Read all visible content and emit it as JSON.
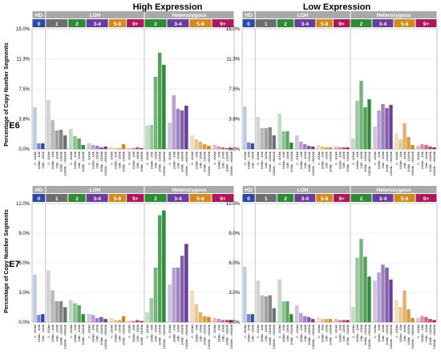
{
  "figure": {
    "column_titles": [
      "High Expression",
      "Low Expression"
    ],
    "row_titles": [
      "E6",
      "E7"
    ],
    "ylabel": "Percentage of Copy Number Segments"
  },
  "legend": {
    "groups": [
      {
        "label": "HD",
        "color": "#a9a9a9"
      },
      {
        "label": "LOH",
        "color": "#a9a9a9"
      },
      {
        "label": "Heterozygous",
        "color": "#a9a9a9"
      }
    ],
    "classes": [
      {
        "label": "0",
        "color": "#2c4aa5"
      },
      {
        "label": "1",
        "color": "#6e6e6e"
      },
      {
        "label": "2",
        "color": "#2e8b35"
      },
      {
        "label": "3-4",
        "color": "#6a3d9a"
      },
      {
        "label": "5-8",
        "color": "#d08a1e"
      },
      {
        "label": "9+",
        "color": "#b0175a"
      },
      {
        "label": "2",
        "color": "#2e8b35"
      },
      {
        "label": "3-4",
        "color": "#6a3d9a"
      },
      {
        "label": "5-8",
        "color": "#d08a1e"
      },
      {
        "label": "9+",
        "color": "#b0175a"
      }
    ]
  },
  "size_bins": [
    "0 - 100kb",
    "100kb - 1Mb",
    "1Mb - 10Mb",
    "10Mb - 100Mb",
    "100Mb - >600Mb"
  ],
  "chart_data": [
    {
      "type": "bar",
      "row": "E6",
      "column": "High Expression",
      "ylim": [
        0,
        15
      ],
      "yticks": [
        "0.0%",
        "3.8%",
        "7.5%",
        "11.3%",
        "15.0%"
      ],
      "groups": [
        {
          "values": [
            5.2,
            0.7,
            0.7
          ]
        },
        {
          "values": [
            6.1,
            3.6,
            2.3,
            2.4,
            1.7
          ]
        },
        {
          "values": [
            2.5,
            1.6,
            1.3,
            0.5
          ]
        },
        {
          "values": [
            0.7,
            0.5,
            0.4,
            0.2,
            0.3
          ]
        },
        {
          "values": [
            0.3,
            0.1,
            0.1,
            0.6
          ]
        },
        {
          "values": [
            0.1,
            0.1,
            0.2,
            0.1
          ]
        },
        {
          "values": [
            2.9,
            3.0,
            9.0,
            12.0,
            10.5
          ]
        },
        {
          "values": [
            3.3,
            6.7,
            5.0,
            4.8,
            5.4
          ]
        },
        {
          "values": [
            1.7,
            1.2,
            0.9,
            0.6,
            0.4
          ]
        },
        {
          "values": [
            0.5,
            0.3,
            0.2,
            0.1,
            0.1
          ]
        }
      ]
    },
    {
      "type": "bar",
      "row": "E6",
      "column": "Low Expression",
      "ylim": [
        0,
        15
      ],
      "yticks": [
        "0.0%",
        "3.8%",
        "7.5%",
        "11.3%",
        "15.0%"
      ],
      "groups": [
        {
          "values": [
            5.3,
            0.8,
            0.7
          ]
        },
        {
          "values": [
            4.0,
            2.6,
            2.6,
            2.7,
            1.7
          ]
        },
        {
          "values": [
            4.4,
            2.2,
            2.2,
            0.8
          ]
        },
        {
          "values": [
            1.7,
            0.9,
            0.6,
            0.4,
            0.3
          ]
        },
        {
          "values": [
            0.5,
            0.3,
            0.2,
            0.2
          ]
        },
        {
          "values": [
            0.3,
            0.2,
            0.2,
            0.2
          ]
        },
        {
          "values": [
            1.3,
            6.0,
            8.5,
            5.2,
            6.2
          ]
        },
        {
          "values": [
            2.8,
            4.8,
            5.6,
            5.1,
            5.5
          ]
        },
        {
          "values": [
            2.0,
            1.2,
            3.2,
            1.5,
            0.5
          ]
        },
        {
          "values": [
            0.4,
            0.6,
            0.5,
            0.3,
            0.2
          ]
        }
      ]
    },
    {
      "type": "bar",
      "row": "E7",
      "column": "High Expression",
      "ylim": [
        0,
        12
      ],
      "yticks": [
        "0.0%",
        "3.0%",
        "6.0%",
        "9.0%",
        "12.0%"
      ],
      "groups": [
        {
          "values": [
            4.8,
            0.7,
            0.8
          ]
        },
        {
          "values": [
            5.2,
            3.2,
            2.1,
            2.1,
            1.5
          ]
        },
        {
          "values": [
            2.2,
            1.9,
            1.7,
            0.8
          ]
        },
        {
          "values": [
            0.8,
            0.7,
            0.4,
            0.5,
            0.3
          ]
        },
        {
          "values": [
            0.4,
            0.2,
            0.2,
            0.6
          ]
        },
        {
          "values": [
            0.1,
            0.1,
            0.2,
            0.1
          ]
        },
        {
          "values": [
            1.0,
            2.4,
            5.5,
            10.8,
            11.3
          ]
        },
        {
          "values": [
            3.8,
            5.5,
            5.5,
            6.7,
            7.9
          ]
        },
        {
          "values": [
            3.2,
            1.8,
            1.0,
            0.6,
            0.5
          ]
        },
        {
          "values": [
            0.4,
            0.3,
            0.2,
            0.2,
            0.2
          ]
        }
      ]
    },
    {
      "type": "bar",
      "row": "E7",
      "column": "Low Expression",
      "ylim": [
        0,
        12
      ],
      "yticks": [
        "0.0%",
        "3.0%",
        "6.0%",
        "9.0%",
        "12.0%"
      ],
      "groups": [
        {
          "values": [
            5.6,
            0.8,
            0.8
          ]
        },
        {
          "values": [
            4.2,
            2.7,
            2.6,
            2.7,
            1.4
          ]
        },
        {
          "values": [
            4.3,
            2.1,
            2.1,
            0.8
          ]
        },
        {
          "values": [
            1.7,
            0.9,
            0.6,
            0.5,
            0.3
          ]
        },
        {
          "values": [
            0.5,
            0.3,
            0.3,
            0.3
          ]
        },
        {
          "values": [
            0.3,
            0.2,
            0.2,
            0.2
          ]
        },
        {
          "values": [
            1.5,
            6.5,
            8.4,
            6.6,
            4.6
          ]
        },
        {
          "values": [
            4.2,
            5.0,
            5.8,
            5.5,
            4.3
          ]
        },
        {
          "values": [
            2.2,
            1.5,
            3.2,
            1.3,
            0.4
          ]
        },
        {
          "values": [
            0.4,
            0.6,
            0.5,
            0.3,
            0.2
          ]
        }
      ]
    }
  ]
}
